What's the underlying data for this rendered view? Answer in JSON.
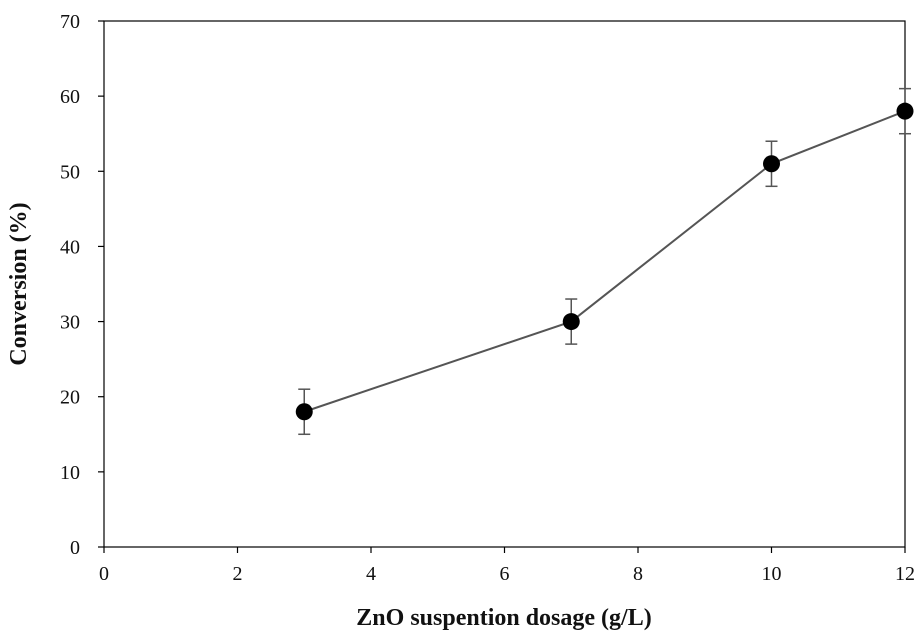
{
  "chart_data": {
    "type": "line",
    "title": "",
    "xlabel": "ZnO suspention dosage (g/L)",
    "ylabel": "Conversion (%)",
    "xlim": [
      0,
      12
    ],
    "ylim": [
      0,
      70
    ],
    "x_ticks": [
      0,
      2,
      4,
      6,
      8,
      10,
      12
    ],
    "y_ticks": [
      0,
      10,
      20,
      30,
      40,
      50,
      60,
      70
    ],
    "grid": false,
    "legend": "none",
    "series": [
      {
        "color": "#555555",
        "marker_color": "#000000",
        "x": [
          3,
          7,
          10,
          12
        ],
        "y": [
          18,
          30,
          51,
          58
        ],
        "error": [
          3,
          3,
          3,
          3
        ]
      }
    ]
  }
}
